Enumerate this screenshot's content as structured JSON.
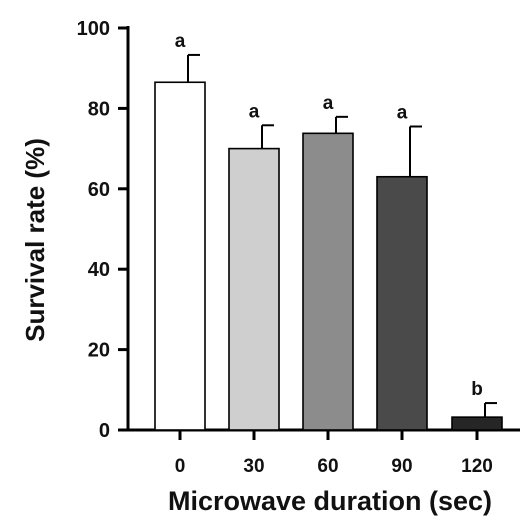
{
  "chart_data": {
    "type": "bar",
    "xlabel": "Microwave duration (sec)",
    "ylabel": "Survival rate (%)",
    "ylim": [
      0,
      100
    ],
    "yticks": [
      "0",
      "20",
      "40",
      "60",
      "80",
      "100"
    ],
    "categories": [
      "0",
      "30",
      "60",
      "90",
      "120"
    ],
    "values": [
      86.5,
      70,
      73.8,
      63,
      3.2
    ],
    "errors": [
      6.8,
      5.8,
      4.1,
      12.5,
      3.5
    ],
    "significance": [
      "a",
      "a",
      "a",
      "a",
      "b"
    ],
    "colors": [
      "#ffffff",
      "#cfcfcf",
      "#8c8c8c",
      "#4a4a4a",
      "#262626"
    ],
    "grid": false
  }
}
